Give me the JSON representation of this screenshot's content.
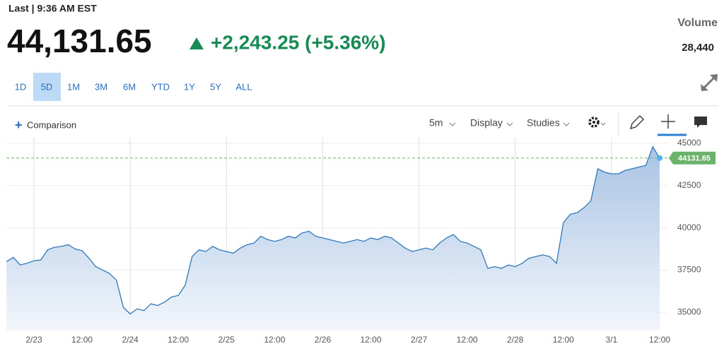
{
  "header": {
    "last": "Last | 9:36 AM EST",
    "price": "44,131.65",
    "change": "+2,243.25 (+5.36%)",
    "volume_label": "Volume",
    "volume": "28,440"
  },
  "ranges": [
    "1D",
    "5D",
    "1M",
    "3M",
    "6M",
    "YTD",
    "1Y",
    "5Y",
    "ALL"
  ],
  "toolbar": {
    "comparison": "Comparison",
    "interval": "5m",
    "display": "Display",
    "studies": "Studies"
  },
  "chart_data": {
    "type": "area",
    "categories": [
      null,
      null,
      null,
      null,
      "2/23",
      null,
      null,
      null,
      null,
      null,
      null,
      "12:00",
      null,
      null,
      null,
      null,
      null,
      null,
      "2/24",
      null,
      null,
      null,
      null,
      null,
      null,
      "12:00",
      null,
      null,
      null,
      null,
      null,
      null,
      "2/25",
      null,
      null,
      null,
      null,
      null,
      null,
      "12:00",
      null,
      null,
      null,
      null,
      null,
      null,
      "2/26",
      null,
      null,
      null,
      null,
      null,
      null,
      "12:00",
      null,
      null,
      null,
      null,
      null,
      null,
      "2/27",
      null,
      null,
      null,
      null,
      null,
      null,
      "12:00",
      null,
      null,
      null,
      null,
      null,
      null,
      "2/28",
      null,
      null,
      null,
      null,
      null,
      null,
      "12:00",
      null,
      null,
      null,
      null,
      null,
      null,
      "3/1",
      null,
      null,
      null,
      null,
      null,
      null,
      "12:00"
    ],
    "values": [
      38000,
      38250,
      37800,
      37900,
      38050,
      38100,
      38700,
      38850,
      38900,
      39000,
      38750,
      38650,
      38200,
      37700,
      37500,
      37300,
      36900,
      35300,
      34900,
      35200,
      35100,
      35500,
      35400,
      35600,
      35900,
      36000,
      36600,
      38300,
      38700,
      38600,
      38900,
      38700,
      38600,
      38500,
      38800,
      39000,
      39100,
      39500,
      39300,
      39200,
      39300,
      39500,
      39400,
      39700,
      39800,
      39500,
      39400,
      39300,
      39200,
      39100,
      39200,
      39300,
      39200,
      39400,
      39300,
      39500,
      39400,
      39100,
      38800,
      38600,
      38700,
      38800,
      38700,
      39100,
      39400,
      39600,
      39200,
      39100,
      38900,
      38700,
      37600,
      37700,
      37600,
      37800,
      37700,
      37900,
      38200,
      38300,
      38400,
      38300,
      37900,
      40300,
      40800,
      40900,
      41200,
      41600,
      43500,
      43300,
      43200,
      43200,
      43400,
      43500,
      43600,
      43700,
      44800,
      44131.65
    ],
    "color": "#2f78b8",
    "ylim": [
      33920,
      45335
    ],
    "yticks": [
      35000,
      37500,
      40000,
      42500,
      45000
    ],
    "grid": true,
    "reference_line": 44131.65,
    "reference_color": "#6bb26b"
  }
}
